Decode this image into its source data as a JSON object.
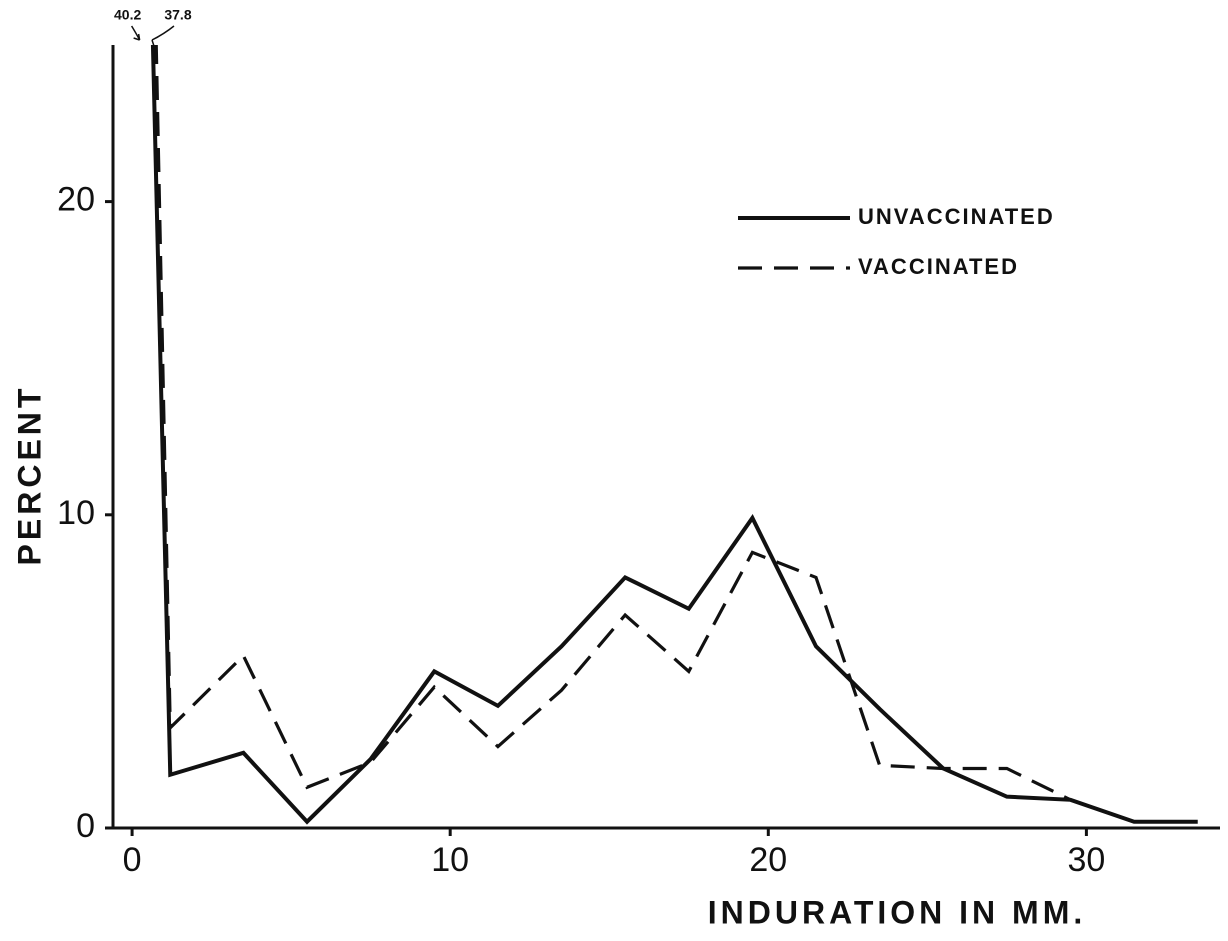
{
  "chart_data": {
    "type": "line",
    "xlabel": "INDURATION IN MM.",
    "ylabel": "PERCENT",
    "xlim": [
      -0.6,
      34.2
    ],
    "ylim": [
      0,
      25
    ],
    "xticks": [
      0,
      10,
      20,
      30
    ],
    "yticks": [
      0,
      10,
      20
    ],
    "legend": "upper right",
    "series": [
      {
        "name": "UNVACCINATED",
        "color": "#111111",
        "dash": "solid",
        "x": [
          0.3,
          1.2,
          3.5,
          5.5,
          7.5,
          9.5,
          11.5,
          13.5,
          15.5,
          17.5,
          19.5,
          21.5,
          23.5,
          25.5,
          27.5,
          29.5,
          31.5,
          33.5
        ],
        "values": [
          40.2,
          1.7,
          2.4,
          0.2,
          2.2,
          5.0,
          3.9,
          5.8,
          8.0,
          7.0,
          9.9,
          5.8,
          3.8,
          1.9,
          1.0,
          0.9,
          0.2,
          0.2
        ]
      },
      {
        "name": "VACCINATED",
        "color": "#111111",
        "dash": "dashed",
        "x": [
          0.5,
          1.2,
          3.5,
          5.5,
          7.5,
          9.5,
          11.5,
          13.5,
          15.5,
          17.5,
          19.5,
          21.5,
          23.5,
          25.5,
          27.5,
          29.5,
          31.5
        ],
        "values": [
          37.8,
          3.2,
          5.5,
          1.3,
          2.1,
          4.5,
          2.6,
          4.4,
          6.8,
          5.0,
          8.8,
          8.0,
          2.0,
          1.9,
          1.9,
          0.9,
          0.2
        ]
      }
    ],
    "annotations": [
      "40.2",
      "37.8"
    ]
  }
}
